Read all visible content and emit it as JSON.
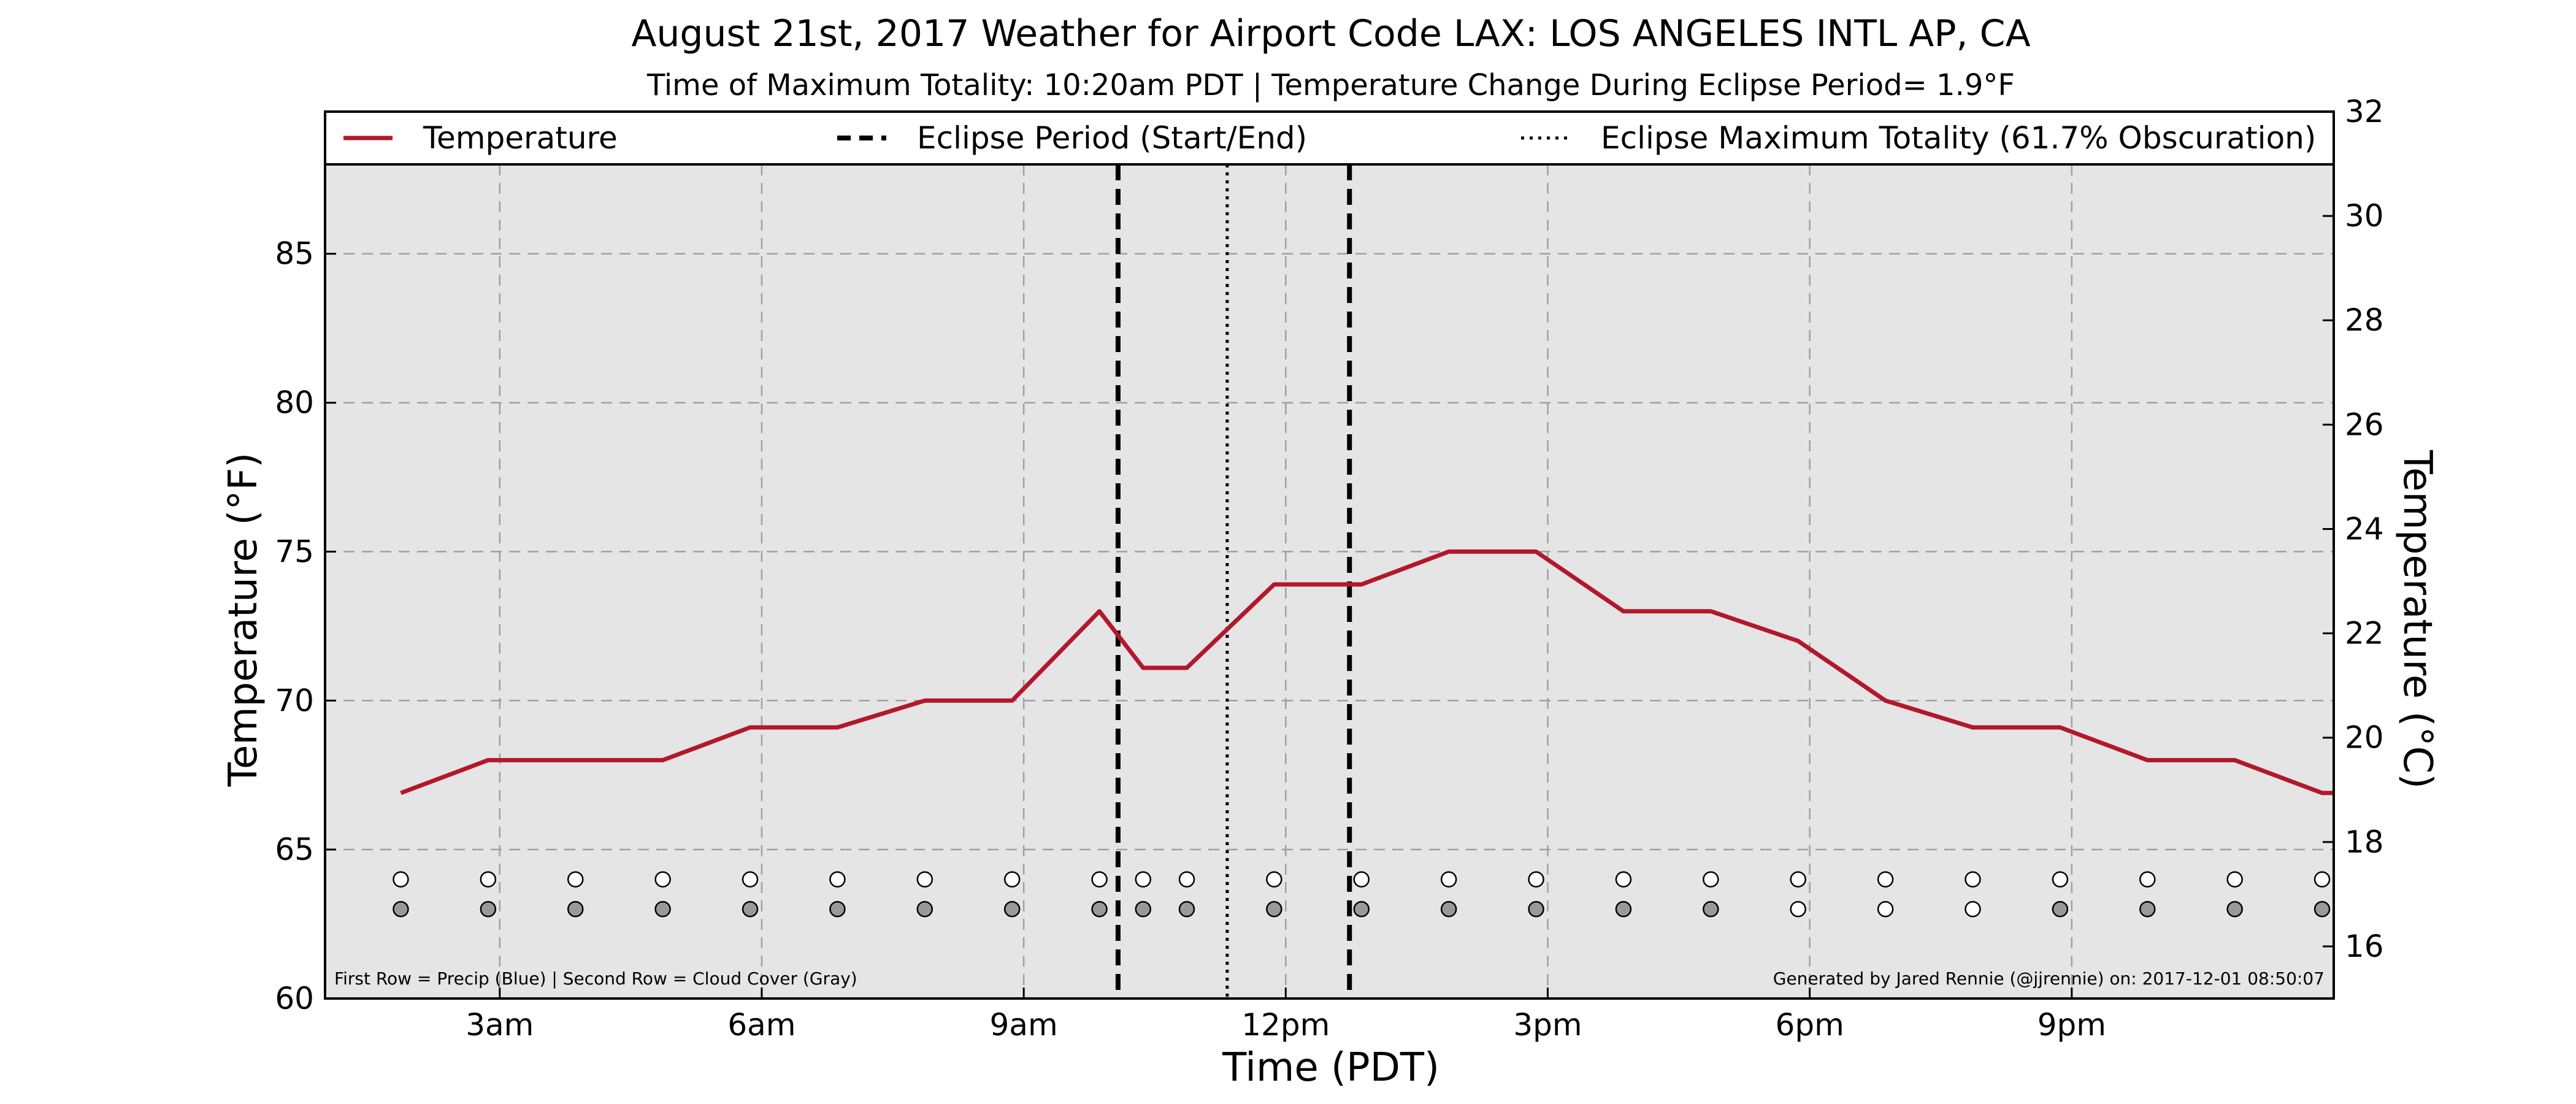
{
  "chart_data": {
    "type": "line",
    "title": "August 21st, 2017 Weather for Airport Code LAX: LOS ANGELES INTL AP, CA",
    "subtitle": "Time of Maximum Totality: 10:20am PDT | Temperature Change During Eclipse Period= 1.9°F",
    "xlabel": "Time (PDT)",
    "ylabel": "Temperature (°F)",
    "y2label": "Temperature (°C)",
    "xlim": [
      0.0,
      23.0
    ],
    "ylim": [
      60,
      88
    ],
    "y2lim": [
      15.0,
      32.0
    ],
    "x_ticks": [
      {
        "x": 2,
        "label": "3am"
      },
      {
        "x": 5,
        "label": "6am"
      },
      {
        "x": 8,
        "label": "9am"
      },
      {
        "x": 11,
        "label": "12pm"
      },
      {
        "x": 14,
        "label": "3pm"
      },
      {
        "x": 17,
        "label": "6pm"
      },
      {
        "x": 20,
        "label": "9pm"
      }
    ],
    "y_ticks": [
      {
        "y": 60,
        "label": "60"
      },
      {
        "y": 65,
        "label": "65"
      },
      {
        "y": 70,
        "label": "70"
      },
      {
        "y": 75,
        "label": "75"
      },
      {
        "y": 80,
        "label": "80"
      },
      {
        "y": 85,
        "label": "85"
      }
    ],
    "y2_ticks": [
      {
        "y": 16,
        "label": "16"
      },
      {
        "y": 18,
        "label": "18"
      },
      {
        "y": 20,
        "label": "20"
      },
      {
        "y": 22,
        "label": "22"
      },
      {
        "y": 24,
        "label": "24"
      },
      {
        "y": 26,
        "label": "26"
      },
      {
        "y": 28,
        "label": "28"
      },
      {
        "y": 30,
        "label": "30"
      },
      {
        "y": 32,
        "label": "32"
      }
    ],
    "grid": true,
    "series": [
      {
        "name": "Temperature",
        "color": "#b2182b",
        "x": [
          0.867,
          1.867,
          2.867,
          3.867,
          4.867,
          5.867,
          6.867,
          7.867,
          8.867,
          9.367,
          9.867,
          10.867,
          11.867,
          12.867,
          13.867,
          14.867,
          15.867,
          16.867,
          17.867,
          18.867,
          19.867,
          20.867,
          21.867,
          22.867,
          23.0
        ],
        "values": [
          66.9,
          68.0,
          68.0,
          68.0,
          69.1,
          69.1,
          70.0,
          70.0,
          73.0,
          71.1,
          71.1,
          73.9,
          73.9,
          75.0,
          75.0,
          73.0,
          73.0,
          72.0,
          70.0,
          69.1,
          69.1,
          68.0,
          68.0,
          66.9,
          66.9
        ]
      }
    ],
    "eclipse_start": 9.08,
    "eclipse_end": 11.73,
    "eclipse_max": 10.33,
    "legend": [
      {
        "label": "Temperature",
        "style": "solid",
        "color": "#b2182b"
      },
      {
        "label": "Eclipse Period (Start/End)",
        "style": "dashed",
        "color": "#000000"
      },
      {
        "label": "Eclipse Maximum Totality (61.7% Obscuration)",
        "style": "dotted",
        "color": "#000000"
      }
    ],
    "legend_position": "top",
    "marker_rows": {
      "x": [
        0.867,
        1.867,
        2.867,
        3.867,
        4.867,
        5.867,
        6.867,
        7.867,
        8.867,
        9.367,
        9.867,
        10.867,
        11.867,
        12.867,
        13.867,
        14.867,
        15.867,
        16.867,
        17.867,
        18.867,
        19.867,
        20.867,
        21.867,
        22.867
      ],
      "precip_y": 64,
      "cloud_y": 63,
      "precip": [
        0,
        0,
        0,
        0,
        0,
        0,
        0,
        0,
        0,
        0,
        0,
        0,
        0,
        0,
        0,
        0,
        0,
        0,
        0,
        0,
        0,
        0,
        0,
        0
      ],
      "cloud": [
        1,
        1,
        1,
        1,
        1,
        1,
        1,
        1,
        1,
        1,
        1,
        1,
        1,
        1,
        1,
        1,
        1,
        0,
        0,
        0,
        1,
        1,
        1,
        1
      ]
    },
    "note_left": "First Row = Precip (Blue) | Second Row = Cloud Cover (Gray)",
    "note_right": "Generated by Jared Rennie (@jjrennie) on: 2017-12-01 08:50:07",
    "colors": {
      "plot_bg": "#e5e5e5",
      "grid": "#a0a0a0",
      "cloud_fill": "#999999",
      "empty_fill": "#ffffff"
    }
  }
}
